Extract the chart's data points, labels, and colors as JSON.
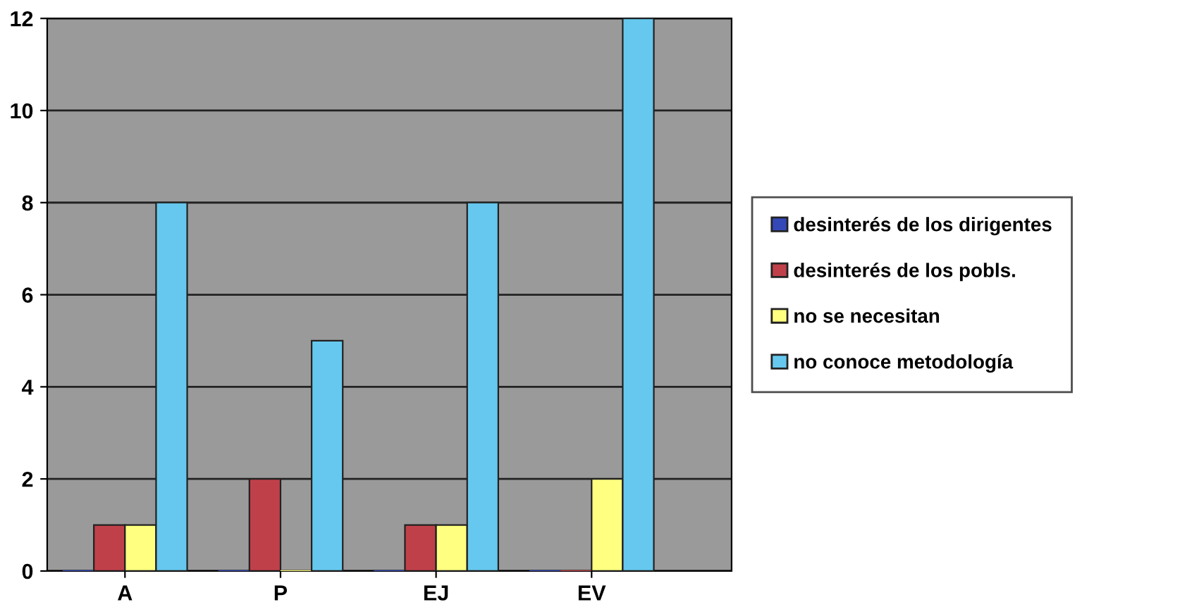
{
  "chart_data": {
    "type": "bar",
    "categories": [
      "A",
      "P",
      "EJ",
      "EV"
    ],
    "series": [
      {
        "name": "desinterés de los dirigentes",
        "color": "#3548b8",
        "values": [
          0,
          0,
          0,
          0
        ]
      },
      {
        "name": "desinterés de los pobls.",
        "color": "#c0404a",
        "values": [
          1,
          2,
          1,
          0
        ]
      },
      {
        "name": "no se necesitan",
        "color": "#ffff80",
        "values": [
          1,
          0,
          1,
          2
        ]
      },
      {
        "name": "no conoce metodología",
        "color": "#66c8ee",
        "values": [
          8,
          5,
          8,
          12
        ]
      }
    ],
    "ylim": [
      0,
      12
    ],
    "yticks": [
      0,
      2,
      4,
      6,
      8,
      10,
      12
    ],
    "grid": "y",
    "legend": "right"
  }
}
